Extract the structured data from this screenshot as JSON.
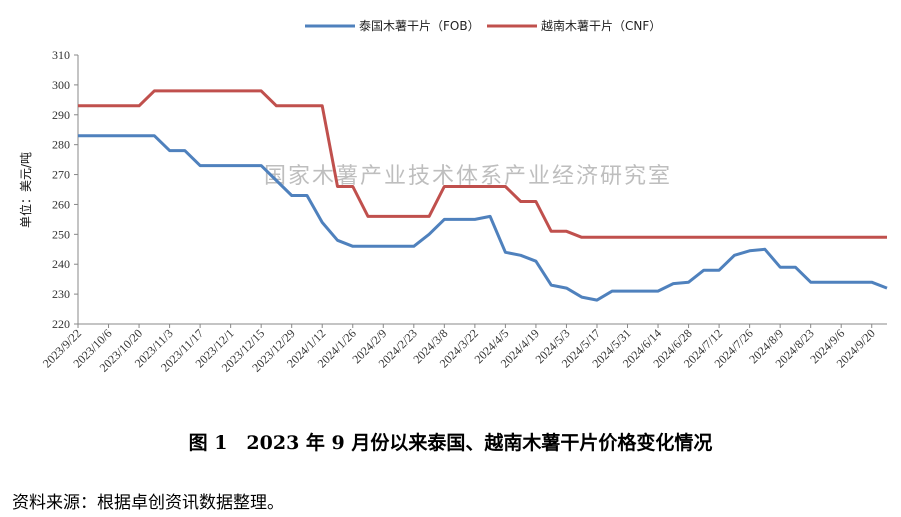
{
  "watermark": "国家木薯产业技术体系产业经济研究室",
  "caption": "图 1　2023 年 9 月份以来泰国、越南木薯干片价格变化情况",
  "source_note": "资料来源：根据卓创资讯数据整理。",
  "colors": {
    "thailand": "#4f81bd",
    "vietnam": "#c0504d",
    "axis": "#888888"
  },
  "chart_data": {
    "type": "line",
    "ylabel": "单位：美元/吨",
    "ylim": [
      220,
      310
    ],
    "yticks": [
      220,
      230,
      240,
      250,
      260,
      270,
      280,
      290,
      300,
      310
    ],
    "grid": false,
    "legend_position": "top-center",
    "xticks": [
      "2023/9/22",
      "2023/10/6",
      "2023/10/20",
      "2023/11/3",
      "2023/11/17",
      "2023/12/1",
      "2023/12/15",
      "2023/12/29",
      "2024/1/12",
      "2024/1/26",
      "2024/2/9",
      "2024/2/23",
      "2024/3/8",
      "2024/3/22",
      "2024/4/5",
      "2024/4/19",
      "2024/5/3",
      "2024/5/17",
      "2024/5/31",
      "2024/6/14",
      "2024/6/28",
      "2024/7/12",
      "2024/7/26",
      "2024/8/9",
      "2024/8/23",
      "2024/9/6",
      "2024/9/20"
    ],
    "series": [
      {
        "name": "泰国木薯干片（FOB）",
        "points": [
          [
            "2023/9/22",
            283
          ],
          [
            "2023/10/6",
            283
          ],
          [
            "2023/10/20",
            283
          ],
          [
            "2023/10/27",
            283
          ],
          [
            "2023/11/3",
            278
          ],
          [
            "2023/11/10",
            278
          ],
          [
            "2023/11/17",
            273
          ],
          [
            "2023/12/1",
            273
          ],
          [
            "2023/12/15",
            273
          ],
          [
            "2023/12/22",
            268
          ],
          [
            "2023/12/29",
            263
          ],
          [
            "2024/1/5",
            263
          ],
          [
            "2024/1/12",
            254
          ],
          [
            "2024/1/19",
            248
          ],
          [
            "2024/1/26",
            246
          ],
          [
            "2024/2/9",
            246
          ],
          [
            "2024/2/23",
            246
          ],
          [
            "2024/3/1",
            250
          ],
          [
            "2024/3/8",
            255
          ],
          [
            "2024/3/22",
            255
          ],
          [
            "2024/3/29",
            256
          ],
          [
            "2024/4/5",
            244
          ],
          [
            "2024/4/12",
            243
          ],
          [
            "2024/4/19",
            241
          ],
          [
            "2024/4/26",
            233
          ],
          [
            "2024/5/3",
            232
          ],
          [
            "2024/5/10",
            229
          ],
          [
            "2024/5/17",
            228
          ],
          [
            "2024/5/24",
            231
          ],
          [
            "2024/6/7",
            231
          ],
          [
            "2024/6/14",
            231
          ],
          [
            "2024/6/21",
            233.5
          ],
          [
            "2024/6/28",
            234
          ],
          [
            "2024/7/5",
            238
          ],
          [
            "2024/7/12",
            238
          ],
          [
            "2024/7/19",
            243
          ],
          [
            "2024/7/26",
            244.5
          ],
          [
            "2024/8/2",
            245
          ],
          [
            "2024/8/9",
            239
          ],
          [
            "2024/8/16",
            239
          ],
          [
            "2024/8/23",
            234
          ],
          [
            "2024/9/6",
            234
          ],
          [
            "2024/9/20",
            234
          ],
          [
            "2024/9/27",
            232
          ]
        ]
      },
      {
        "name": "越南木薯干片（CNF）",
        "points": [
          [
            "2023/9/22",
            293
          ],
          [
            "2023/10/6",
            293
          ],
          [
            "2023/10/20",
            293
          ],
          [
            "2023/10/27",
            298
          ],
          [
            "2023/11/3",
            298
          ],
          [
            "2023/11/17",
            298
          ],
          [
            "2023/12/1",
            298
          ],
          [
            "2023/12/15",
            298
          ],
          [
            "2023/12/22",
            293
          ],
          [
            "2023/12/29",
            293
          ],
          [
            "2024/1/5",
            293
          ],
          [
            "2024/1/12",
            293
          ],
          [
            "2024/1/19",
            266
          ],
          [
            "2024/1/26",
            266
          ],
          [
            "2024/2/2",
            256
          ],
          [
            "2024/2/9",
            256
          ],
          [
            "2024/2/23",
            256
          ],
          [
            "2024/3/1",
            256
          ],
          [
            "2024/3/8",
            266
          ],
          [
            "2024/3/22",
            266
          ],
          [
            "2024/3/29",
            266
          ],
          [
            "2024/4/5",
            266
          ],
          [
            "2024/4/12",
            261
          ],
          [
            "2024/4/19",
            261
          ],
          [
            "2024/4/26",
            251
          ],
          [
            "2024/5/3",
            251
          ],
          [
            "2024/5/10",
            249
          ],
          [
            "2024/5/24",
            249
          ],
          [
            "2024/6/7",
            249
          ],
          [
            "2024/6/21",
            249
          ],
          [
            "2024/7/5",
            249
          ],
          [
            "2024/7/19",
            249
          ],
          [
            "2024/8/2",
            249
          ],
          [
            "2024/8/16",
            249
          ],
          [
            "2024/8/30",
            249
          ],
          [
            "2024/9/13",
            249
          ],
          [
            "2024/9/27",
            249
          ]
        ]
      }
    ]
  }
}
